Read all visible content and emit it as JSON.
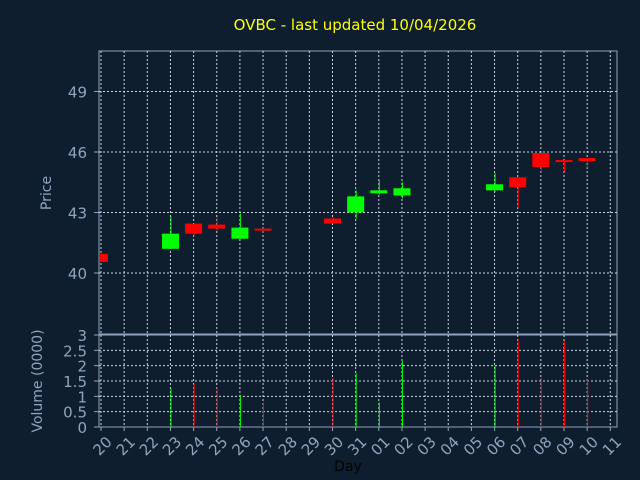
{
  "chart_data": [
    {
      "type": "candlestick",
      "title": "OVBC - last updated 10/04/2026",
      "ylabel": "Price",
      "xlabel": "",
      "ylim": [
        37,
        41
      ],
      "yticks": [
        40,
        43,
        46,
        49
      ],
      "x_ticks": [
        "20",
        "21",
        "22",
        "23",
        "24",
        "25",
        "26",
        "27",
        "28",
        "29",
        "30",
        "31",
        "01",
        "02",
        "03",
        "04",
        "05",
        "06",
        "07",
        "08",
        "09",
        "10",
        "11"
      ],
      "grid": true,
      "colors": {
        "up": "#00ff00",
        "down": "#ff0000"
      },
      "candles": [
        {
          "x": "20",
          "open": 40.95,
          "close": 40.55,
          "high": 40.95,
          "low": 40.55,
          "dir": "down"
        },
        {
          "x": "23",
          "open": 41.2,
          "close": 41.95,
          "high": 42.8,
          "low": 41.2,
          "dir": "up"
        },
        {
          "x": "24",
          "open": 42.45,
          "close": 41.95,
          "high": 42.45,
          "low": 41.85,
          "dir": "down"
        },
        {
          "x": "25",
          "open": 42.4,
          "close": 42.2,
          "high": 42.75,
          "low": 42.1,
          "dir": "down"
        },
        {
          "x": "26",
          "open": 41.7,
          "close": 42.25,
          "high": 42.95,
          "low": 41.7,
          "dir": "up"
        },
        {
          "x": "27",
          "open": 42.2,
          "close": 42.15,
          "high": 42.25,
          "low": 42.0,
          "dir": "down"
        },
        {
          "x": "30",
          "open": 42.7,
          "close": 42.45,
          "high": 42.75,
          "low": 42.45,
          "dir": "down"
        },
        {
          "x": "31",
          "open": 43.0,
          "close": 43.8,
          "high": 44.1,
          "low": 42.7,
          "dir": "up"
        },
        {
          "x": "01",
          "open": 43.95,
          "close": 44.1,
          "high": 44.6,
          "low": 43.9,
          "dir": "up"
        },
        {
          "x": "02",
          "open": 43.85,
          "close": 44.2,
          "high": 44.5,
          "low": 43.7,
          "dir": "up"
        },
        {
          "x": "06",
          "open": 44.1,
          "close": 44.4,
          "high": 44.95,
          "low": 44.0,
          "dir": "up"
        },
        {
          "x": "07",
          "open": 44.75,
          "close": 44.25,
          "high": 44.75,
          "low": 43.25,
          "dir": "down"
        },
        {
          "x": "08",
          "open": 45.95,
          "close": 45.25,
          "high": 45.95,
          "low": 45.0,
          "dir": "down"
        },
        {
          "x": "09",
          "open": 45.6,
          "close": 45.5,
          "high": 45.6,
          "low": 45.05,
          "dir": "down"
        },
        {
          "x": "10",
          "open": 45.7,
          "close": 45.55,
          "high": 45.7,
          "low": 45.2,
          "dir": "down"
        }
      ]
    },
    {
      "type": "bar",
      "ylabel": "Volume (0000)",
      "xlabel": "Day",
      "ylim": [
        0,
        3
      ],
      "yticks": [
        "0",
        "0.5",
        "1",
        "1.5",
        "2",
        "2.5",
        "3"
      ],
      "series": [
        {
          "values": [
            {
              "x": "23",
              "v": 1.25,
              "dir": "up"
            },
            {
              "x": "24",
              "v": 1.4,
              "dir": "down"
            },
            {
              "x": "25",
              "v": 1.3,
              "dir": "down"
            },
            {
              "x": "26",
              "v": 1.05,
              "dir": "up"
            },
            {
              "x": "27",
              "v": 0.8,
              "dir": "down"
            },
            {
              "x": "30",
              "v": 1.6,
              "dir": "down"
            },
            {
              "x": "31",
              "v": 1.75,
              "dir": "up"
            },
            {
              "x": "01",
              "v": 0.8,
              "dir": "up"
            },
            {
              "x": "02",
              "v": 2.15,
              "dir": "up"
            },
            {
              "x": "06",
              "v": 2.0,
              "dir": "up"
            },
            {
              "x": "07",
              "v": 2.85,
              "dir": "down"
            },
            {
              "x": "08",
              "v": 1.6,
              "dir": "down"
            },
            {
              "x": "09",
              "v": 2.8,
              "dir": "down"
            },
            {
              "x": "10",
              "v": 1.55,
              "dir": "down"
            }
          ]
        }
      ]
    }
  ]
}
